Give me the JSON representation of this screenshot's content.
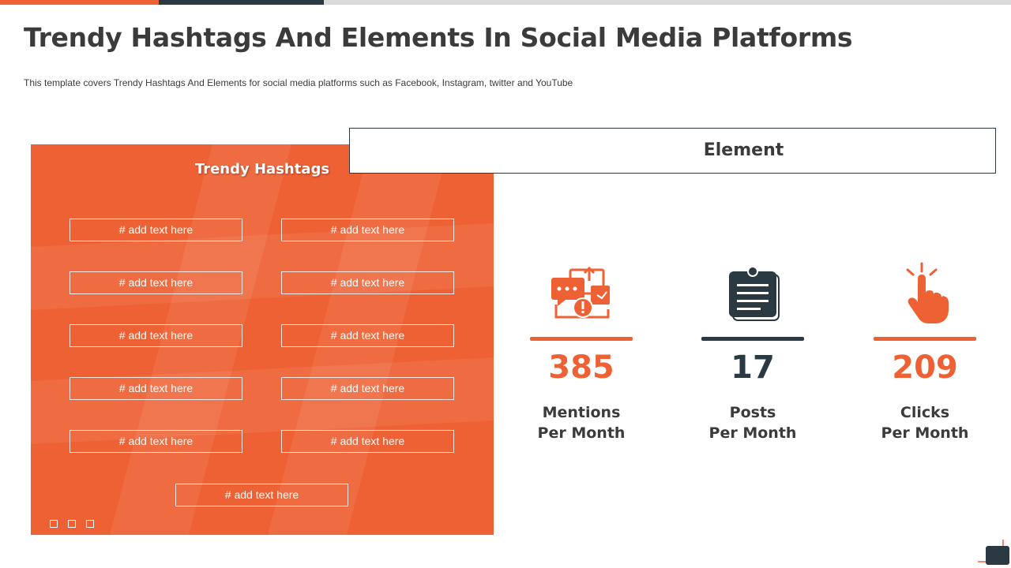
{
  "colors": {
    "accent": "#ee6134",
    "dark": "#2b3a42",
    "text": "#3b3b3b"
  },
  "header": {
    "title": "Trendy Hashtags And Elements In Social Media Platforms",
    "subtitle": "This template covers Trendy Hashtags And Elements for social media platforms such as Facebook, Instagram, twitter and YouTube"
  },
  "hashtags": {
    "title": "Trendy Hashtags",
    "items": [
      "# add text here",
      "# add text here",
      "# add text here",
      "# add text here",
      "# add text here",
      "# add text here",
      "# add text here",
      "# add text here",
      "# add text here",
      "# add text here",
      "# add text here"
    ]
  },
  "element": {
    "label": "Element",
    "stats": [
      {
        "value": "385",
        "label": "Mentions\nPer Month",
        "icon": "social-media-chat-icon",
        "color": "#ee6134"
      },
      {
        "value": "17",
        "label": "Posts\nPer Month",
        "icon": "notepad-icon",
        "color": "#2b3a42"
      },
      {
        "value": "209",
        "label": "Clicks\nPer Month",
        "icon": "click-hand-icon",
        "color": "#ee6134"
      }
    ]
  }
}
